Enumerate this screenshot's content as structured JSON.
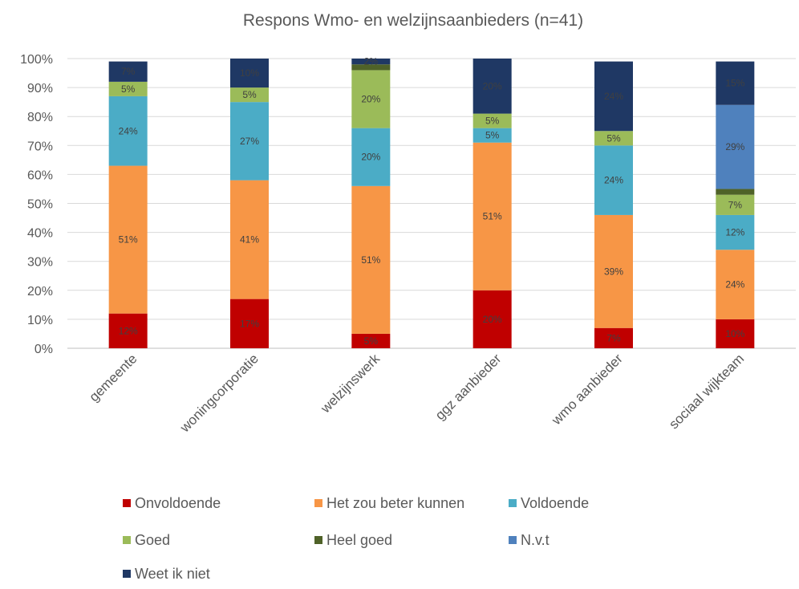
{
  "chart_data": {
    "type": "bar",
    "stacked": true,
    "title": "Respons Wmo- en welzijnsaanbieders (n=41)",
    "xlabel": "",
    "ylabel": "",
    "ylim": [
      0,
      100
    ],
    "y_ticks": [
      "0%",
      "10%",
      "20%",
      "30%",
      "40%",
      "50%",
      "60%",
      "70%",
      "80%",
      "90%",
      "100%"
    ],
    "grid": true,
    "legend_position": "bottom",
    "categories": [
      "gemeente",
      "woningcorporatie",
      "welzijnswerk",
      "ggz aanbieder",
      "wmo aanbieder",
      "sociaal wijkteam"
    ],
    "series": [
      {
        "name": "Onvoldoende",
        "color": "#C00000",
        "values": [
          12,
          17,
          5,
          20,
          7,
          10
        ],
        "labels": [
          "12%",
          "17%",
          "5%",
          "20%",
          "7%",
          "10%"
        ]
      },
      {
        "name": "Het zou beter kunnen",
        "color": "#F79646",
        "values": [
          51,
          41,
          51,
          51,
          39,
          24
        ],
        "labels": [
          "51%",
          "41%",
          "51%",
          "51%",
          "39%",
          "24%"
        ]
      },
      {
        "name": "Voldoende",
        "color": "#4BACC6",
        "values": [
          24,
          27,
          20,
          5,
          24,
          12
        ],
        "labels": [
          "24%",
          "27%",
          "20%",
          "5%",
          "24%",
          "12%"
        ]
      },
      {
        "name": "Goed",
        "color": "#9BBB59",
        "values": [
          5,
          5,
          20,
          5,
          5,
          7
        ],
        "labels": [
          "5%",
          "5%",
          "20%",
          "5%",
          "5%",
          "7%"
        ]
      },
      {
        "name": "Heel goed",
        "color": "#4F6228",
        "values": [
          0,
          0,
          2,
          0,
          0,
          2
        ],
        "labels": [
          "",
          "",
          "",
          "",
          "",
          ""
        ]
      },
      {
        "name": "N.v.t",
        "color": "#4F81BD",
        "values": [
          0,
          0,
          0,
          0,
          0,
          29
        ],
        "labels": [
          "",
          "",
          "",
          "",
          "",
          "29%"
        ]
      },
      {
        "name": "Weet ik niet",
        "color": "#1F3864",
        "values": [
          7,
          10,
          2,
          20,
          24,
          15
        ],
        "labels": [
          "7%",
          "10%",
          "2%",
          "20%",
          "24%",
          "15%"
        ]
      }
    ]
  }
}
